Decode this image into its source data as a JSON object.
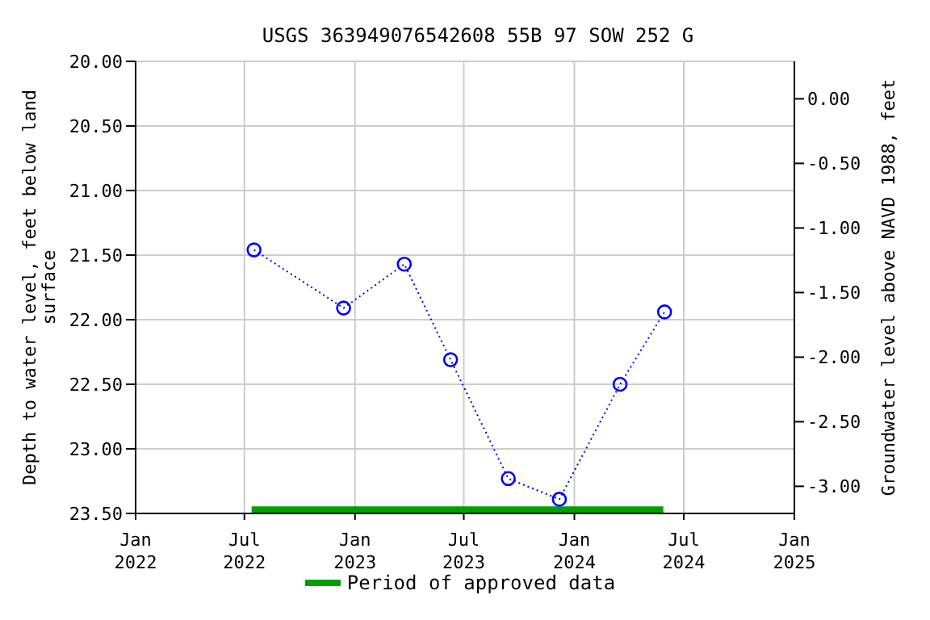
{
  "chart_data": {
    "type": "line",
    "title": "USGS 363949076542608 55B 97 SOW 252 G",
    "xlabel": null,
    "ylabel": "Depth to water level, feet below land surface",
    "y2label": "Groundwater level above NAVD 1988, feet",
    "series": [
      {
        "color": "#0000ff",
        "marker": "circle",
        "line_style": "dotted",
        "x": [
          "2022-07-17",
          "2022-12-13",
          "2023-03-24",
          "2023-06-09",
          "2023-09-13",
          "2023-12-07",
          "2024-03-17",
          "2024-05-30"
        ],
        "values": [
          21.46,
          21.91,
          21.57,
          22.31,
          23.23,
          23.39,
          22.5,
          21.94
        ]
      },
      {
        "name": "Period of approved data",
        "color": "#00a000",
        "marker": "none",
        "line_style": "solid",
        "x": [
          "2022-07-13",
          "2024-05-28"
        ],
        "values": [
          23.47,
          23.47
        ]
      }
    ],
    "xlim": [
      "2022-01-01",
      "2025-01-01"
    ],
    "xticks": [
      {
        "value": "2022-01-01",
        "label": "Jan 2022"
      },
      {
        "value": "2022-07-01",
        "label": "Jul 2022"
      },
      {
        "value": "2023-01-01",
        "label": "Jan 2023"
      },
      {
        "value": "2023-07-01",
        "label": "Jul 2023"
      },
      {
        "value": "2024-01-01",
        "label": "Jan 2024"
      },
      {
        "value": "2024-07-01",
        "label": "Jul 2024"
      },
      {
        "value": "2025-01-01",
        "label": "Jan 2025"
      }
    ],
    "ylim": [
      23.5,
      20
    ],
    "yticks": [
      {
        "value": 20,
        "label": "20.00"
      },
      {
        "value": 20.5,
        "label": "20.50"
      },
      {
        "value": 21,
        "label": "21.00"
      },
      {
        "value": 21.5,
        "label": "21.50"
      },
      {
        "value": 22,
        "label": "22.00"
      },
      {
        "value": 22.5,
        "label": "22.50"
      },
      {
        "value": 23,
        "label": "23.00"
      },
      {
        "value": 23.5,
        "label": "23.50"
      }
    ],
    "y2lim": [
      -3.21,
      0.29
    ],
    "y2ticks": [
      {
        "value": 0,
        "label": "0.00"
      },
      {
        "value": -0.5,
        "label": "-0.50"
      },
      {
        "value": -1,
        "label": "-1.00"
      },
      {
        "value": -1.5,
        "label": "-1.50"
      },
      {
        "value": -2,
        "label": "-2.00"
      },
      {
        "value": -2.5,
        "label": "-2.50"
      },
      {
        "value": -3,
        "label": "-3.00"
      }
    ],
    "grid": true,
    "legend": "bottom"
  }
}
